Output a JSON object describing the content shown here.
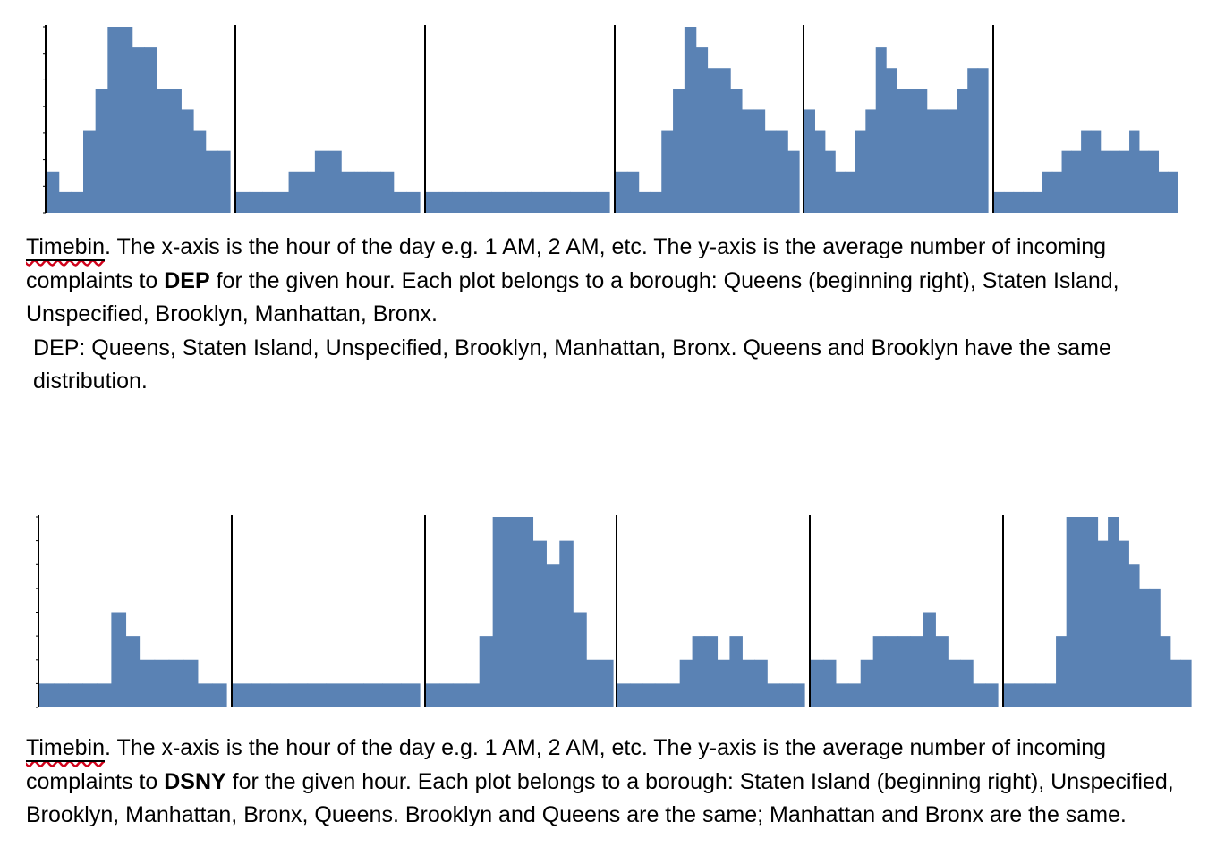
{
  "colors": {
    "bar": "#5a82b4",
    "axis": "#000000",
    "underline": "#d0021b"
  },
  "chart_data": [
    {
      "type": "bar",
      "group": "DEP",
      "panels": [
        {
          "values": [
            2,
            1,
            1,
            4,
            6,
            9,
            9,
            8,
            8,
            6,
            6,
            5,
            4,
            3,
            3
          ]
        },
        {
          "values": [
            1,
            1,
            1,
            1,
            2,
            2,
            3,
            3,
            2,
            2,
            2,
            2,
            1,
            1
          ]
        },
        {
          "values": [
            1,
            1,
            1,
            1,
            1,
            1,
            1,
            1,
            1,
            1,
            1,
            1,
            1,
            1
          ]
        },
        {
          "values": [
            2,
            2,
            1,
            1,
            4,
            6,
            9,
            8,
            7,
            7,
            6,
            5,
            5,
            4,
            4,
            3
          ]
        },
        {
          "values": [
            5,
            4,
            3,
            2,
            2,
            4,
            5,
            8,
            7,
            6,
            6,
            6,
            5,
            5,
            5,
            6,
            7,
            7
          ]
        },
        {
          "values": [
            1,
            1,
            1,
            1,
            1,
            2,
            2,
            3,
            3,
            4,
            4,
            3,
            3,
            3,
            4,
            3,
            3,
            2,
            2
          ]
        }
      ]
    },
    {
      "type": "bar",
      "group": "DSNY",
      "panels": [
        {
          "values": [
            1,
            1,
            1,
            1,
            1,
            4,
            3,
            2,
            2,
            2,
            2,
            1,
            1
          ]
        },
        {
          "values": [
            1,
            1,
            1,
            1,
            1,
            1,
            1,
            1,
            1,
            1
          ]
        },
        {
          "values": [
            1,
            1,
            1,
            1,
            3,
            8,
            8,
            8,
            7,
            6,
            7,
            4,
            2,
            2
          ]
        },
        {
          "values": [
            1,
            1,
            1,
            1,
            1,
            2,
            3,
            3,
            2,
            3,
            2,
            2,
            1,
            1,
            1
          ]
        },
        {
          "values": [
            2,
            2,
            1,
            1,
            2,
            3,
            3,
            3,
            3,
            4,
            3,
            2,
            2,
            1,
            1
          ]
        },
        {
          "values": [
            1,
            1,
            1,
            1,
            1,
            3,
            8,
            8,
            8,
            7,
            8,
            7,
            6,
            5,
            5,
            3,
            2,
            2
          ]
        }
      ]
    }
  ],
  "captions": [
    {
      "term": "Timebin",
      "text_a": ". The x-axis is the hour of the day e.g. 1 AM, 2 AM, etc. The y-axis is the average number of incoming complaints to ",
      "agency": "DEP",
      "text_b": " for the given hour. Each plot belongs to a borough:  Queens (beginning right), Staten Island, Unspecified, Brooklyn, Manhattan, Bronx.",
      "note": "DEP: Queens, Staten Island, Unspecified, Brooklyn, Manhattan, Bronx. Queens and Brooklyn have the same distribution."
    },
    {
      "term": "Timebin",
      "text_a": ". The x-axis is the hour of the day e.g. 1 AM, 2 AM, etc. The y-axis is the average number of incoming complaints to ",
      "agency": "DSNY",
      "text_b": " for the given hour. Each plot belongs to a borough:  Staten Island (beginning right), Unspecified, Brooklyn, Manhattan, Bronx, Queens. Brooklyn and Queens are the same; Manhattan and Bronx are the same."
    }
  ]
}
